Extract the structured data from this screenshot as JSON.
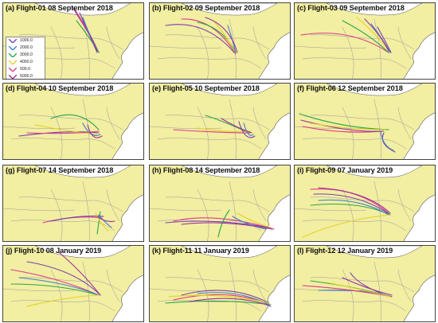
{
  "colors": {
    "land": "#f2eea2",
    "sea": "#ffffff",
    "border": "#9a9a9a",
    "coast": "#555555",
    "frame": "#444444"
  },
  "legend": {
    "items": [
      {
        "label": "1000.0",
        "color": "#7a3fb0"
      },
      {
        "label": "2000.0",
        "color": "#3a7fd0"
      },
      {
        "label": "3000.0",
        "color": "#2aa64a"
      },
      {
        "label": "4000.0",
        "color": "#e3d320"
      },
      {
        "label": "500.0",
        "color": "#e03a8a"
      },
      {
        "label": "5000.0",
        "color": "#9b2fa0"
      }
    ]
  },
  "panels": [
    {
      "id": "a",
      "title": "(a) Flight-01 08 September 2018"
    },
    {
      "id": "b",
      "title": "(b) Flight-02 09 September 2018"
    },
    {
      "id": "c",
      "title": "(c) Flight-03 09 September 2018"
    },
    {
      "id": "d",
      "title": "(d) Flight-04 10 September 2018"
    },
    {
      "id": "e",
      "title": "(e) Flight-05 10 September 2018"
    },
    {
      "id": "f",
      "title": "(f) Flight-06 12 September 2018"
    },
    {
      "id": "g",
      "title": "(g) Flight-07 14 September 2018"
    },
    {
      "id": "h",
      "title": "(h) Flight-08 14 September 2018"
    },
    {
      "id": "i",
      "title": "(i) Flight-09 07 January 2019"
    },
    {
      "id": "j",
      "title": "(j) Flight-10 08 January 2019"
    },
    {
      "id": "k",
      "title": "(k) Flight-11 11 January 2019"
    },
    {
      "id": "l",
      "title": "(l) Flight-12 12 January 2019"
    }
  ]
}
